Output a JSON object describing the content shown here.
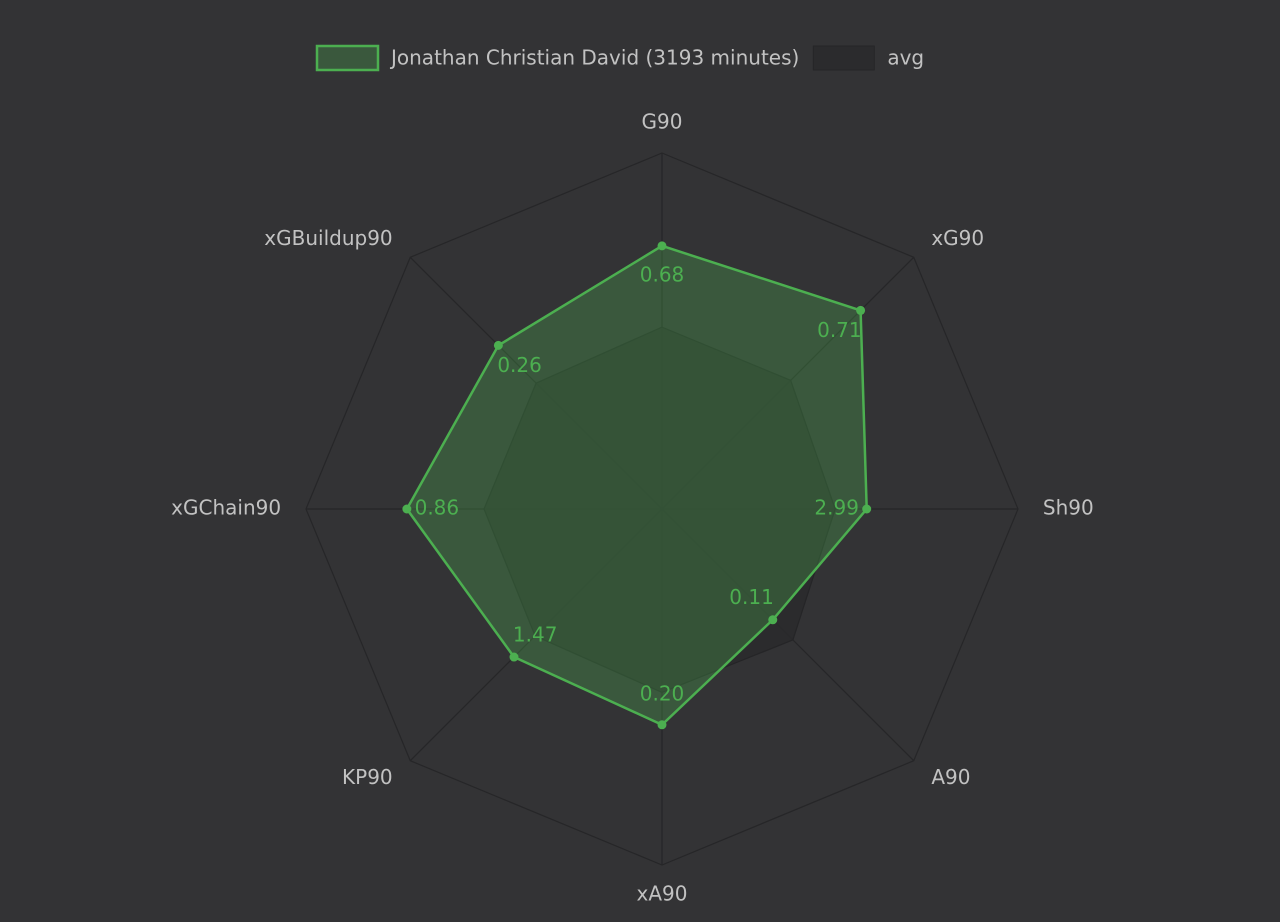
{
  "chart_data": {
    "type": "radar",
    "categories": [
      "G90",
      "xG90",
      "Sh90",
      "A90",
      "xA90",
      "KP90",
      "xGChain90",
      "xGBuildup90"
    ],
    "rlim": [
      [
        0,
        0.92
      ],
      [
        0,
        0.9
      ],
      [
        0,
        5.2
      ],
      [
        0,
        0.25
      ],
      [
        0,
        0.33
      ],
      [
        0,
        2.5
      ],
      [
        0,
        1.2
      ],
      [
        0,
        0.4
      ]
    ],
    "series": [
      {
        "name": "Jonathan Christian David (3193 minutes)",
        "color": "#4caf50",
        "values": [
          0.68,
          0.71,
          2.99,
          0.11,
          0.2,
          1.47,
          0.86,
          0.26
        ],
        "value_labels": [
          "0.68",
          "0.71",
          "2.99",
          "0.11",
          "0.20",
          "1.47",
          "0.86",
          "0.26"
        ]
      },
      {
        "name": "avg",
        "color": "#2a2a2c",
        "values": [
          0.47,
          0.46,
          2.53,
          0.13,
          0.17,
          1.26,
          0.6,
          0.2
        ]
      }
    ]
  }
}
